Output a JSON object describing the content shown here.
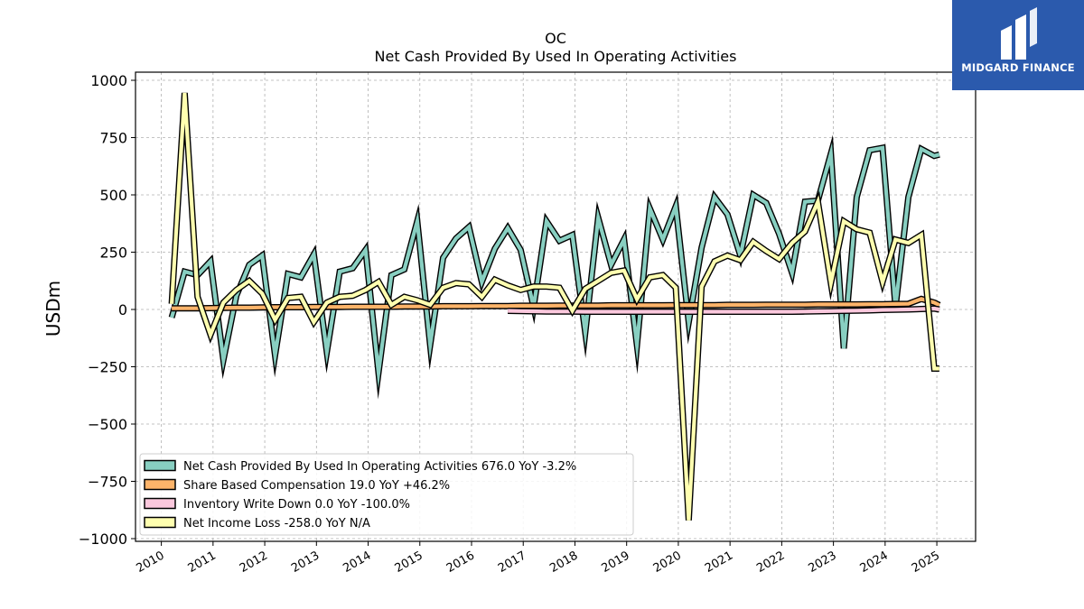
{
  "logo": {
    "text": "MIDGARD FINANCE"
  },
  "colors": {
    "net_cash": "#88cfc1",
    "sbc": "#fdb46a",
    "inventory": "#fbc8dd",
    "net_income": "#ffffb0",
    "outline": "#000000",
    "logo_bg": "#2b5aad"
  },
  "chart_data": {
    "type": "line",
    "title": "OC",
    "subtitle": "Net Cash Provided By Used In Operating Activities",
    "xlabel": "",
    "ylabel": "USDm",
    "ylim": [
      -1000,
      1000
    ],
    "yticks": [
      1000,
      750,
      500,
      250,
      0,
      -250,
      -500,
      -750,
      -1000
    ],
    "ytick_labels": [
      "1000",
      "750",
      "500",
      "250",
      "0",
      "−250",
      "−500",
      "−750",
      "−1000"
    ],
    "xlim": [
      2009.5,
      2025.75
    ],
    "xticks": [
      "2010",
      "2011",
      "2012",
      "2013",
      "2014",
      "2015",
      "2016",
      "2017",
      "2018",
      "2019",
      "2020",
      "2021",
      "2022",
      "2023",
      "2024",
      "2025"
    ],
    "grid": true,
    "legend_position": "bottom-left",
    "series": [
      {
        "name": "Net Cash Provided By Used In Operating Activities",
        "legend": "Net Cash Provided By Used In Operating Activities  676.0 YoY -3.2%",
        "x": [
          2010.2,
          2010.45,
          2010.7,
          2010.95,
          2011.2,
          2011.45,
          2011.7,
          2011.95,
          2012.2,
          2012.45,
          2012.7,
          2012.95,
          2013.2,
          2013.45,
          2013.7,
          2013.95,
          2014.2,
          2014.45,
          2014.7,
          2014.95,
          2015.2,
          2015.45,
          2015.7,
          2015.95,
          2016.2,
          2016.45,
          2016.7,
          2016.95,
          2017.2,
          2017.45,
          2017.7,
          2017.95,
          2018.2,
          2018.45,
          2018.7,
          2018.95,
          2019.2,
          2019.45,
          2019.7,
          2019.95,
          2020.2,
          2020.45,
          2020.7,
          2020.95,
          2021.2,
          2021.45,
          2021.7,
          2021.95,
          2022.2,
          2022.45,
          2022.7,
          2022.95,
          2023.2,
          2023.45,
          2023.7,
          2023.95,
          2024.2,
          2024.45,
          2024.7,
          2024.95,
          2025.05
        ],
        "y": [
          -35,
          165,
          150,
          210,
          -220,
          60,
          195,
          235,
          -200,
          155,
          140,
          240,
          -185,
          165,
          180,
          260,
          -275,
          150,
          175,
          385,
          -155,
          225,
          310,
          360,
          120,
          265,
          355,
          260,
          10,
          385,
          300,
          325,
          -100,
          400,
          195,
          305,
          -155,
          440,
          305,
          450,
          -55,
          270,
          490,
          415,
          235,
          500,
          465,
          330,
          160,
          470,
          475,
          680,
          -170,
          490,
          695,
          705,
          10,
          490,
          700,
          670,
          676
        ]
      },
      {
        "name": "Share Based Compensation",
        "legend": "Share Based Compensation  19.0 YoY +46.2%",
        "x": [
          2010.2,
          2010.45,
          2010.7,
          2010.95,
          2011.2,
          2011.45,
          2011.7,
          2011.95,
          2012.2,
          2012.45,
          2012.7,
          2012.95,
          2013.2,
          2013.45,
          2013.7,
          2013.95,
          2014.2,
          2014.45,
          2014.7,
          2014.95,
          2015.2,
          2015.45,
          2015.7,
          2015.95,
          2016.2,
          2016.45,
          2016.7,
          2016.95,
          2017.2,
          2017.45,
          2017.7,
          2017.95,
          2018.2,
          2018.45,
          2018.7,
          2018.95,
          2019.2,
          2019.45,
          2019.7,
          2019.95,
          2020.2,
          2020.45,
          2020.7,
          2020.95,
          2021.2,
          2021.45,
          2021.7,
          2021.95,
          2022.2,
          2022.45,
          2022.7,
          2022.95,
          2023.2,
          2023.45,
          2023.7,
          2023.95,
          2024.2,
          2024.45,
          2024.7,
          2024.95,
          2025.05
        ],
        "y": [
          5,
          5,
          5,
          6,
          7,
          8,
          8,
          9,
          10,
          10,
          10,
          11,
          11,
          11,
          12,
          12,
          12,
          12,
          13,
          13,
          13,
          14,
          14,
          14,
          15,
          15,
          15,
          16,
          16,
          16,
          17,
          17,
          17,
          17,
          18,
          18,
          18,
          18,
          18,
          19,
          19,
          19,
          19,
          20,
          20,
          20,
          21,
          21,
          21,
          21,
          22,
          22,
          22,
          22,
          23,
          23,
          24,
          25,
          46,
          30,
          19
        ]
      },
      {
        "name": "Inventory Write Down",
        "legend": "Inventory Write Down  0.0 YoY -100.0%",
        "x": [
          2016.7,
          2016.95,
          2017.2,
          2017.45,
          2017.7,
          2017.95,
          2018.2,
          2018.45,
          2018.7,
          2018.95,
          2019.2,
          2019.45,
          2019.7,
          2019.95,
          2020.2,
          2020.45,
          2020.7,
          2020.95,
          2021.2,
          2021.45,
          2021.7,
          2021.95,
          2022.2,
          2022.45,
          2022.7,
          2022.95,
          2023.2,
          2023.45,
          2023.7,
          2023.95,
          2024.2,
          2024.45,
          2024.7,
          2024.95,
          2025.05
        ],
        "y": [
          -6,
          -7,
          -8,
          -9,
          -9,
          -9,
          -10,
          -10,
          -10,
          -10,
          -10,
          -10,
          -10,
          -10,
          -10,
          -10,
          -10,
          -10,
          -10,
          -10,
          -10,
          -10,
          -10,
          -9,
          -8,
          -7,
          -6,
          -5,
          -4,
          -2,
          -1,
          0,
          2,
          4,
          0
        ]
      },
      {
        "name": "Net Income Loss",
        "legend": "Net Income Loss  -258.0 YoY N/A",
        "x": [
          2010.2,
          2010.45,
          2010.7,
          2010.95,
          2011.2,
          2011.45,
          2011.7,
          2011.95,
          2012.2,
          2012.45,
          2012.7,
          2012.95,
          2013.2,
          2013.45,
          2013.7,
          2013.95,
          2014.2,
          2014.45,
          2014.7,
          2014.95,
          2015.2,
          2015.45,
          2015.7,
          2015.95,
          2016.2,
          2016.45,
          2016.7,
          2016.95,
          2017.2,
          2017.45,
          2017.7,
          2017.95,
          2018.2,
          2018.45,
          2018.7,
          2018.95,
          2019.2,
          2019.45,
          2019.7,
          2019.95,
          2020.2,
          2020.45,
          2020.7,
          2020.95,
          2021.2,
          2021.45,
          2021.7,
          2021.95,
          2022.2,
          2022.45,
          2022.7,
          2022.95,
          2023.2,
          2023.45,
          2023.7,
          2023.95,
          2024.2,
          2024.45,
          2024.7,
          2024.95,
          2025.05
        ],
        "y": [
          25,
          945,
          55,
          -110,
          30,
          85,
          125,
          70,
          -45,
          50,
          55,
          -55,
          30,
          55,
          60,
          85,
          120,
          20,
          55,
          40,
          20,
          95,
          115,
          110,
          55,
          130,
          105,
          85,
          100,
          100,
          95,
          -5,
          90,
          125,
          160,
          170,
          45,
          140,
          150,
          95,
          -920,
          100,
          210,
          235,
          215,
          295,
          255,
          220,
          290,
          340,
          470,
          115,
          385,
          350,
          335,
          120,
          305,
          290,
          325,
          -258,
          -258
        ]
      }
    ]
  }
}
